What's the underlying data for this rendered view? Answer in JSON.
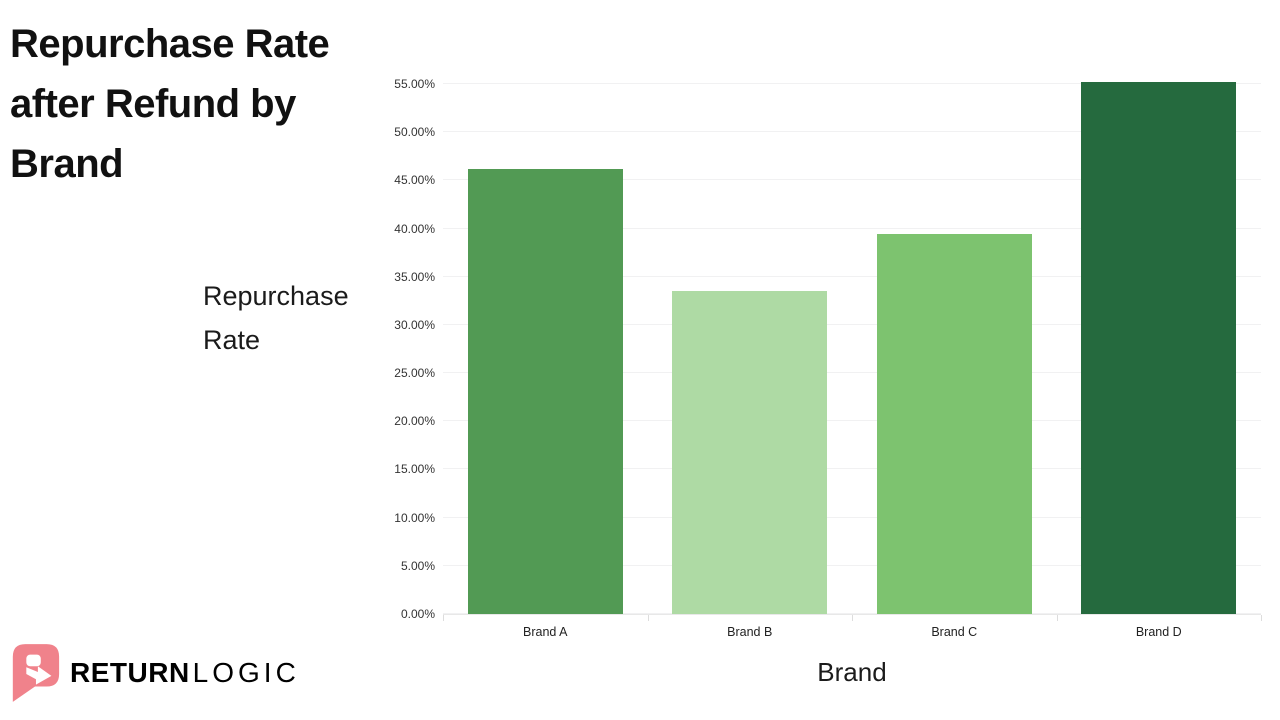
{
  "slide": {
    "background": "#ffffff"
  },
  "title": {
    "text": "Repurchase Rate after Refund by Brand"
  },
  "logo": {
    "word_bold": "RETURN",
    "word_light": "LOGIC",
    "icon_name": "returnlogic-r-arrow-icon",
    "icon_color": "#f0828b",
    "wordmark_color": "#2b4a74"
  },
  "chart_data": {
    "type": "bar",
    "title": "Repurchase Rate after Refund by Brand",
    "categories": [
      "Brand A",
      "Brand B",
      "Brand C",
      "Brand D"
    ],
    "values": [
      46.2,
      33.5,
      39.4,
      55.2
    ],
    "value_unit": "percent",
    "bar_colors": [
      "#529a54",
      "#aedaa4",
      "#7dc36f",
      "#256a3e"
    ],
    "xlabel": "Brand",
    "ylabel": "Repurchase Rate",
    "ylim": [
      0,
      55
    ],
    "ytick_step": 5,
    "ytick_labels": [
      "0.00%",
      "5.00%",
      "10.00%",
      "15.00%",
      "20.00%",
      "25.00%",
      "30.00%",
      "35.00%",
      "40.00%",
      "45.00%",
      "50.00%",
      "55.00%"
    ],
    "grid": "horizontal-only",
    "gridline_color": "#f1f1f2",
    "axis_line_color": "#e8e8e8",
    "tick_label_color": "#333333",
    "legend": "none"
  }
}
